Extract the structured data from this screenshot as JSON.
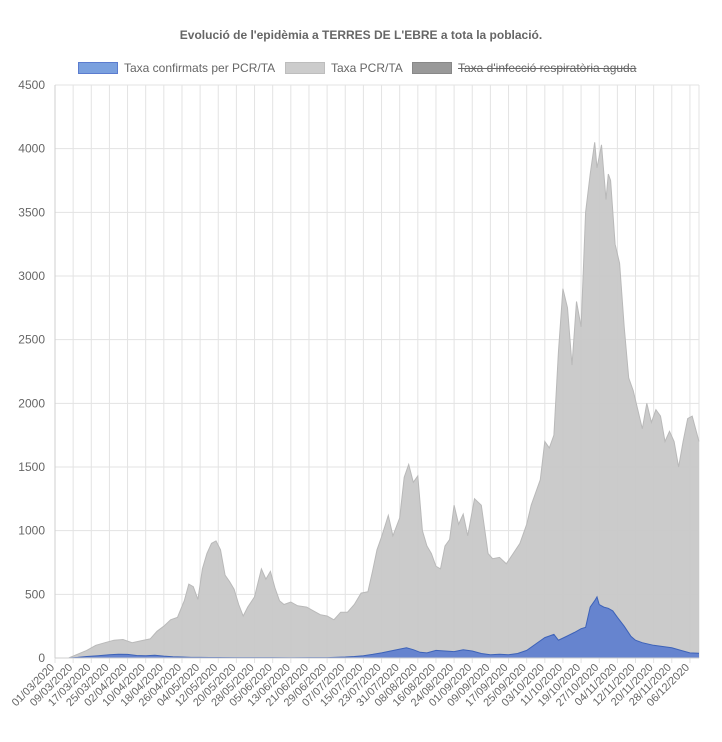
{
  "chart_data": {
    "type": "area",
    "title": "Evolució de l'epidèmia a TERRES DE L'EBRE a tota la població.",
    "xlabel": "",
    "ylabel": "",
    "ylim": [
      0,
      4500
    ],
    "yticks": [
      0,
      500,
      1000,
      1500,
      2000,
      2500,
      3000,
      3500,
      4000,
      4500
    ],
    "grid": true,
    "legend_position": "top",
    "x_tick_labels": [
      "01/03/2020",
      "09/03/2020",
      "17/03/2020",
      "25/03/2020",
      "02/04/2020",
      "10/04/2020",
      "18/04/2020",
      "26/04/2020",
      "04/05/2020",
      "12/05/2020",
      "20/05/2020",
      "28/05/2020",
      "05/06/2020",
      "13/06/2020",
      "21/06/2020",
      "29/06/2020",
      "07/07/2020",
      "15/07/2020",
      "23/07/2020",
      "31/07/2020",
      "08/08/2020",
      "16/08/2020",
      "24/08/2020",
      "01/09/2020",
      "09/09/2020",
      "17/09/2020",
      "25/09/2020",
      "03/10/2020",
      "11/10/2020",
      "19/10/2020",
      "27/10/2020",
      "04/11/2020",
      "12/11/2020",
      "20/11/2020",
      "28/11/2020",
      "06/12/2020"
    ],
    "series": [
      {
        "name": "Taxa confirmats per PCR/TA",
        "color": "#5b7ccf",
        "legend_color": "#7aa0de",
        "hidden": false,
        "points": [
          [
            "01/03/2020",
            0
          ],
          [
            "07/03/2020",
            0
          ],
          [
            "11/03/2020",
            5
          ],
          [
            "15/03/2020",
            12
          ],
          [
            "20/03/2020",
            18
          ],
          [
            "25/03/2020",
            25
          ],
          [
            "29/03/2020",
            30
          ],
          [
            "02/04/2020",
            28
          ],
          [
            "06/04/2020",
            20
          ],
          [
            "10/04/2020",
            18
          ],
          [
            "14/04/2020",
            22
          ],
          [
            "18/04/2020",
            15
          ],
          [
            "22/04/2020",
            10
          ],
          [
            "26/04/2020",
            8
          ],
          [
            "30/04/2020",
            5
          ],
          [
            "04/05/2020",
            5
          ],
          [
            "08/05/2020",
            4
          ],
          [
            "12/05/2020",
            4
          ],
          [
            "20/05/2020",
            3
          ],
          [
            "28/05/2020",
            3
          ],
          [
            "05/06/2020",
            3
          ],
          [
            "13/06/2020",
            2
          ],
          [
            "21/06/2020",
            3
          ],
          [
            "29/06/2020",
            3
          ],
          [
            "07/07/2020",
            8
          ],
          [
            "11/07/2020",
            12
          ],
          [
            "15/07/2020",
            18
          ],
          [
            "19/07/2020",
            28
          ],
          [
            "23/07/2020",
            40
          ],
          [
            "27/07/2020",
            55
          ],
          [
            "31/07/2020",
            70
          ],
          [
            "03/08/2020",
            80
          ],
          [
            "06/08/2020",
            65
          ],
          [
            "09/08/2020",
            45
          ],
          [
            "12/08/2020",
            40
          ],
          [
            "16/08/2020",
            60
          ],
          [
            "20/08/2020",
            55
          ],
          [
            "24/08/2020",
            50
          ],
          [
            "28/08/2020",
            65
          ],
          [
            "01/09/2020",
            55
          ],
          [
            "05/09/2020",
            35
          ],
          [
            "09/09/2020",
            25
          ],
          [
            "13/09/2020",
            30
          ],
          [
            "17/09/2020",
            25
          ],
          [
            "21/09/2020",
            35
          ],
          [
            "25/09/2020",
            60
          ],
          [
            "29/09/2020",
            110
          ],
          [
            "03/10/2020",
            160
          ],
          [
            "07/10/2020",
            185
          ],
          [
            "09/10/2020",
            140
          ],
          [
            "12/10/2020",
            165
          ],
          [
            "16/10/2020",
            200
          ],
          [
            "19/10/2020",
            230
          ],
          [
            "21/10/2020",
            240
          ],
          [
            "23/10/2020",
            400
          ],
          [
            "25/10/2020",
            450
          ],
          [
            "26/10/2020",
            480
          ],
          [
            "27/10/2020",
            420
          ],
          [
            "29/10/2020",
            400
          ],
          [
            "31/10/2020",
            390
          ],
          [
            "02/11/2020",
            370
          ],
          [
            "04/11/2020",
            320
          ],
          [
            "07/11/2020",
            250
          ],
          [
            "10/11/2020",
            170
          ],
          [
            "12/11/2020",
            140
          ],
          [
            "15/11/2020",
            120
          ],
          [
            "20/11/2020",
            100
          ],
          [
            "24/11/2020",
            90
          ],
          [
            "28/11/2020",
            80
          ],
          [
            "02/12/2020",
            60
          ],
          [
            "06/12/2020",
            40
          ],
          [
            "10/12/2020",
            38
          ]
        ]
      },
      {
        "name": "Taxa PCR/TA",
        "color": "#c8c8c8",
        "legend_color": "#cccccc",
        "hidden": false,
        "points": [
          [
            "01/03/2020",
            0
          ],
          [
            "07/03/2020",
            0
          ],
          [
            "11/03/2020",
            30
          ],
          [
            "15/03/2020",
            60
          ],
          [
            "19/03/2020",
            100
          ],
          [
            "23/03/2020",
            120
          ],
          [
            "27/03/2020",
            140
          ],
          [
            "31/03/2020",
            145
          ],
          [
            "04/04/2020",
            120
          ],
          [
            "08/04/2020",
            135
          ],
          [
            "12/04/2020",
            150
          ],
          [
            "15/04/2020",
            210
          ],
          [
            "18/04/2020",
            250
          ],
          [
            "21/04/2020",
            300
          ],
          [
            "24/04/2020",
            320
          ],
          [
            "27/04/2020",
            450
          ],
          [
            "29/04/2020",
            580
          ],
          [
            "01/05/2020",
            560
          ],
          [
            "03/05/2020",
            460
          ],
          [
            "05/05/2020",
            700
          ],
          [
            "07/05/2020",
            820
          ],
          [
            "09/05/2020",
            900
          ],
          [
            "11/05/2020",
            920
          ],
          [
            "13/05/2020",
            850
          ],
          [
            "15/05/2020",
            650
          ],
          [
            "17/05/2020",
            600
          ],
          [
            "19/05/2020",
            540
          ],
          [
            "21/05/2020",
            420
          ],
          [
            "23/05/2020",
            330
          ],
          [
            "25/05/2020",
            400
          ],
          [
            "28/05/2020",
            480
          ],
          [
            "31/05/2020",
            700
          ],
          [
            "02/06/2020",
            620
          ],
          [
            "04/06/2020",
            680
          ],
          [
            "06/06/2020",
            550
          ],
          [
            "08/06/2020",
            450
          ],
          [
            "10/06/2020",
            420
          ],
          [
            "13/06/2020",
            440
          ],
          [
            "16/06/2020",
            410
          ],
          [
            "20/06/2020",
            400
          ],
          [
            "23/06/2020",
            370
          ],
          [
            "26/06/2020",
            340
          ],
          [
            "29/06/2020",
            330
          ],
          [
            "02/07/2020",
            300
          ],
          [
            "05/07/2020",
            360
          ],
          [
            "08/07/2020",
            360
          ],
          [
            "11/07/2020",
            420
          ],
          [
            "14/07/2020",
            510
          ],
          [
            "17/07/2020",
            520
          ],
          [
            "19/07/2020",
            680
          ],
          [
            "21/07/2020",
            850
          ],
          [
            "23/07/2020",
            950
          ],
          [
            "26/07/2020",
            1120
          ],
          [
            "28/07/2020",
            960
          ],
          [
            "31/07/2020",
            1100
          ],
          [
            "02/08/2020",
            1420
          ],
          [
            "04/08/2020",
            1520
          ],
          [
            "06/08/2020",
            1380
          ],
          [
            "08/08/2020",
            1430
          ],
          [
            "10/08/2020",
            1000
          ],
          [
            "12/08/2020",
            880
          ],
          [
            "14/08/2020",
            820
          ],
          [
            "16/08/2020",
            720
          ],
          [
            "18/08/2020",
            700
          ],
          [
            "20/08/2020",
            880
          ],
          [
            "22/08/2020",
            930
          ],
          [
            "24/08/2020",
            1200
          ],
          [
            "26/08/2020",
            1050
          ],
          [
            "28/08/2020",
            1130
          ],
          [
            "30/08/2020",
            960
          ],
          [
            "02/09/2020",
            1250
          ],
          [
            "05/09/2020",
            1200
          ],
          [
            "08/09/2020",
            820
          ],
          [
            "10/09/2020",
            780
          ],
          [
            "13/09/2020",
            790
          ],
          [
            "16/09/2020",
            740
          ],
          [
            "19/09/2020",
            820
          ],
          [
            "22/09/2020",
            900
          ],
          [
            "25/09/2020",
            1050
          ],
          [
            "27/09/2020",
            1200
          ],
          [
            "29/09/2020",
            1300
          ],
          [
            "01/10/2020",
            1400
          ],
          [
            "03/10/2020",
            1700
          ],
          [
            "05/10/2020",
            1650
          ],
          [
            "07/10/2020",
            1750
          ],
          [
            "09/10/2020",
            2400
          ],
          [
            "11/10/2020",
            2900
          ],
          [
            "13/10/2020",
            2750
          ],
          [
            "15/10/2020",
            2300
          ],
          [
            "17/10/2020",
            2800
          ],
          [
            "19/10/2020",
            2600
          ],
          [
            "21/10/2020",
            3500
          ],
          [
            "23/10/2020",
            3800
          ],
          [
            "25/10/2020",
            4050
          ],
          [
            "26/10/2020",
            3850
          ],
          [
            "28/10/2020",
            4030
          ],
          [
            "30/10/2020",
            3600
          ],
          [
            "31/10/2020",
            3800
          ],
          [
            "01/11/2020",
            3750
          ],
          [
            "03/11/2020",
            3250
          ],
          [
            "05/11/2020",
            3100
          ],
          [
            "07/11/2020",
            2600
          ],
          [
            "09/11/2020",
            2200
          ],
          [
            "11/11/2020",
            2100
          ],
          [
            "13/11/2020",
            1950
          ],
          [
            "15/11/2020",
            1800
          ],
          [
            "17/11/2020",
            2000
          ],
          [
            "19/11/2020",
            1850
          ],
          [
            "21/11/2020",
            1950
          ],
          [
            "23/11/2020",
            1900
          ],
          [
            "25/11/2020",
            1700
          ],
          [
            "27/11/2020",
            1780
          ],
          [
            "29/11/2020",
            1700
          ],
          [
            "01/12/2020",
            1500
          ],
          [
            "03/12/2020",
            1700
          ],
          [
            "05/12/2020",
            1880
          ],
          [
            "07/12/2020",
            1900
          ],
          [
            "10/12/2020",
            1700
          ]
        ]
      },
      {
        "name": "Taxa d'infecció respiratòria aguda",
        "color": "#999999",
        "legend_color": "#999999",
        "hidden": true,
        "points": []
      }
    ]
  }
}
